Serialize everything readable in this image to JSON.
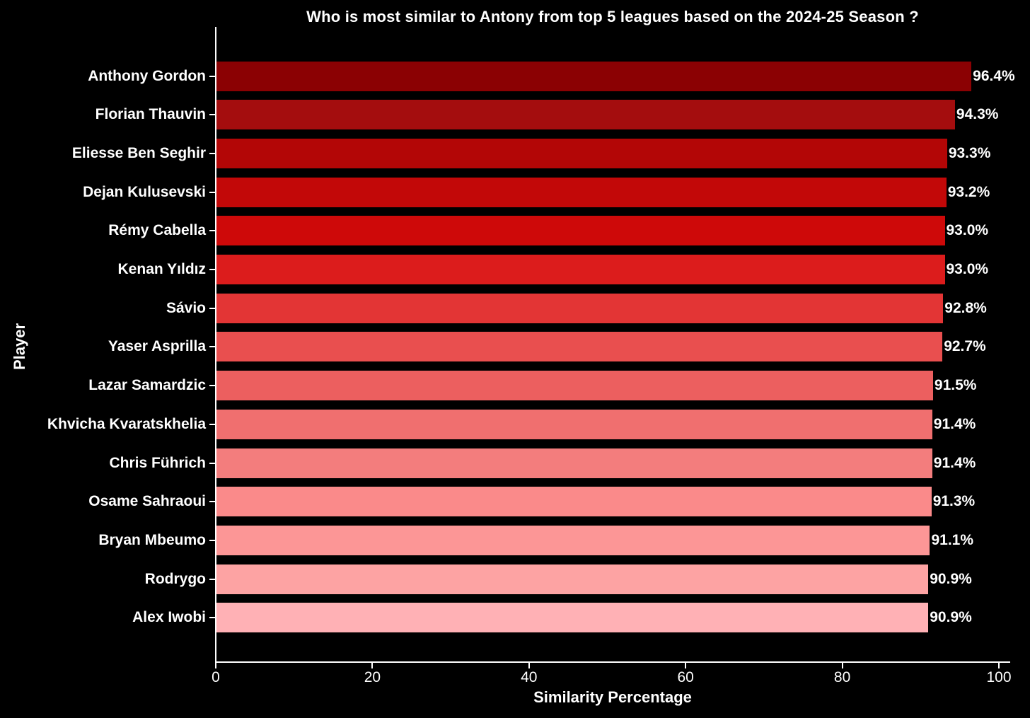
{
  "chart_data": {
    "type": "bar",
    "orientation": "horizontal",
    "title": "Who is most similar to Antony from top 5 leagues based on the 2024-25 Season ?",
    "xlabel": "Similarity Percentage",
    "ylabel": "Player",
    "xlim": [
      0,
      100
    ],
    "x_ticks": [
      "0",
      "20",
      "40",
      "60",
      "80",
      "100"
    ],
    "x_tick_values": [
      0,
      20,
      40,
      60,
      80,
      100
    ],
    "grid": false,
    "background_color": "#000000",
    "text_color": "#ffffff",
    "categories": [
      "Anthony Gordon",
      "Florian Thauvin",
      "Eliesse Ben Seghir",
      "Dejan Kulusevski",
      "Rémy Cabella",
      "Kenan Yıldız",
      "Sávio",
      "Yaser Asprilla",
      "Lazar Samardzic",
      "Khvicha Kvaratskhelia",
      "Chris Führich",
      "Osame Sahraoui",
      "Bryan Mbeumo",
      "Rodrygo",
      "Alex Iwobi"
    ],
    "values": [
      96.4,
      94.3,
      93.3,
      93.2,
      93.0,
      93.0,
      92.8,
      92.7,
      91.5,
      91.4,
      91.4,
      91.3,
      91.1,
      90.9,
      90.9
    ],
    "value_labels": [
      "96.4%",
      "94.3%",
      "93.3%",
      "93.2%",
      "93.0%",
      "93.0%",
      "92.8%",
      "92.7%",
      "91.5%",
      "91.4%",
      "91.4%",
      "91.3%",
      "91.1%",
      "90.9%",
      "90.9%"
    ],
    "bar_colors": [
      "#8B0103",
      "#A40D0E",
      "#B30606",
      "#C20808",
      "#CE0909",
      "#DC1C1C",
      "#E33535",
      "#E94F4F",
      "#EC5F5F",
      "#F06F6F",
      "#F37D7D",
      "#FA8A8A",
      "#FC9696",
      "#FDA3A3",
      "#FFB1B5"
    ]
  }
}
